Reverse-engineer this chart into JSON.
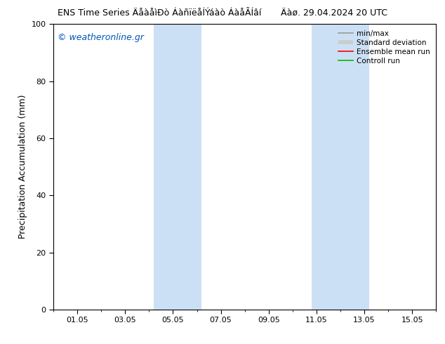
{
  "title_left": "ENS Time Series ÄåàåìÐò ÁàñïëåÍÝáàò ÁàåÃÍâí",
  "title_right": "Äàø. 29.04.2024 20 UTC",
  "ylabel": "Precipitation Accumulation (mm)",
  "ylim": [
    0,
    100
  ],
  "yticks": [
    0,
    20,
    40,
    60,
    80,
    100
  ],
  "xtick_labels": [
    "01.05",
    "03.05",
    "05.05",
    "07.05",
    "09.05",
    "11.05",
    "13.05",
    "15.05"
  ],
  "xtick_positions": [
    1,
    3,
    5,
    7,
    9,
    11,
    13,
    15
  ],
  "xlim": [
    0,
    16
  ],
  "watermark": "© weatheronline.gr",
  "watermark_color": "#0055bb",
  "bg_color": "#ffffff",
  "plot_bg_color": "#ffffff",
  "shaded_bands": [
    {
      "x_start": 4.2,
      "x_end": 5.0,
      "color": "#cce0f5",
      "alpha": 1.0
    },
    {
      "x_start": 5.0,
      "x_end": 6.2,
      "color": "#cce0f5",
      "alpha": 1.0
    },
    {
      "x_start": 10.8,
      "x_end": 11.8,
      "color": "#cce0f5",
      "alpha": 1.0
    },
    {
      "x_start": 11.8,
      "x_end": 13.2,
      "color": "#cce0f5",
      "alpha": 1.0
    }
  ],
  "legend_labels": [
    "min/max",
    "Standard deviation",
    "Ensemble mean run",
    "Controll run"
  ],
  "legend_colors": [
    "#999999",
    "#cccccc",
    "#ff0000",
    "#00bb00"
  ],
  "axis_color": "#000000",
  "font_size_title": 9,
  "font_size_axis": 9,
  "font_size_ticks": 8,
  "font_size_watermark": 9,
  "font_size_legend": 7.5
}
